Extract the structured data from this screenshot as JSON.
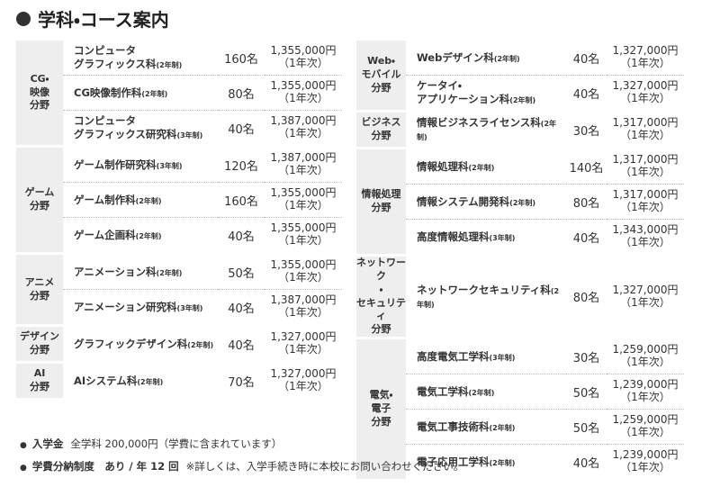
{
  "header": {
    "title": "学科・コース案内"
  },
  "left": {
    "groups": [
      {
        "field": "CG・\n映像\n分野",
        "courses": [
          {
            "name": "コンピュータ\nグラフィックス科",
            "term": "(2年制)",
            "capacity": "160名",
            "fee": "1,355,000円",
            "year": "（1年次）"
          },
          {
            "name": "CG映像制作科",
            "term": "(2年制)",
            "capacity": "80名",
            "fee": "1,355,000円",
            "year": "（1年次）"
          },
          {
            "name": "コンピュータ\nグラフィックス研究科",
            "term": "(3年制)",
            "capacity": "40名",
            "fee": "1,387,000円",
            "year": "（1年次）"
          }
        ]
      },
      {
        "field": "ゲーム\n分野",
        "courses": [
          {
            "name": "ゲーム制作研究科",
            "term": "(3年制)",
            "capacity": "120名",
            "fee": "1,387,000円",
            "year": "（1年次）"
          },
          {
            "name": "ゲーム制作科",
            "term": "(2年制)",
            "capacity": "160名",
            "fee": "1,355,000円",
            "year": "（1年次）"
          },
          {
            "name": "ゲーム企画科",
            "term": "(2年制)",
            "capacity": "40名",
            "fee": "1,355,000円",
            "year": "（1年次）"
          }
        ]
      },
      {
        "field": "アニメ\n分野",
        "courses": [
          {
            "name": "アニメーション科",
            "term": "(2年制)",
            "capacity": "50名",
            "fee": "1,355,000円",
            "year": "（1年次）"
          },
          {
            "name": "アニメーション研究科",
            "term": "(3年制)",
            "capacity": "40名",
            "fee": "1,387,000円",
            "year": "（1年次）"
          }
        ]
      },
      {
        "field": "デザイン\n分野",
        "courses": [
          {
            "name": "グラフィックデザイン科",
            "term": "(2年制)",
            "capacity": "40名",
            "fee": "1,327,000円",
            "year": "（1年次）"
          }
        ]
      },
      {
        "field": "AI\n分野",
        "courses": [
          {
            "name": "AIシステム科",
            "term": "(2年制)",
            "capacity": "70名",
            "fee": "1,327,000円",
            "year": "（1年次）"
          }
        ]
      }
    ]
  },
  "right": {
    "groups": [
      {
        "field": "Web・\nモバイル\n分野",
        "courses": [
          {
            "name": "Webデザイン科",
            "term": "(2年制)",
            "capacity": "40名",
            "fee": "1,327,000円",
            "year": "（1年次）"
          },
          {
            "name": "ケータイ・\nアプリケーション科",
            "term": "(2年制)",
            "capacity": "40名",
            "fee": "1,327,000円",
            "year": "（1年次）"
          }
        ]
      },
      {
        "field": "ビジネス\n分野",
        "courses": [
          {
            "name": "情報ビジネスライセンス科",
            "term": "(2年制)",
            "capacity": "30名",
            "fee": "1,317,000円",
            "year": "（1年次）"
          }
        ]
      },
      {
        "field": "情報処理\n分野",
        "courses": [
          {
            "name": "情報処理科",
            "term": "(2年制)",
            "capacity": "140名",
            "fee": "1,317,000円",
            "year": "（1年次）"
          },
          {
            "name": "情報システム開発科",
            "term": "(2年制)",
            "capacity": "80名",
            "fee": "1,317,000円",
            "year": "（1年次）"
          },
          {
            "name": "高度情報処理科",
            "term": "(3年制)",
            "capacity": "40名",
            "fee": "1,343,000円",
            "year": "（1年次）"
          }
        ]
      },
      {
        "field": "ネットワーク\n・\nセキュリティ\n分野",
        "courses": [
          {
            "name": "ネットワークセキュリティ科",
            "term": "(2年制)",
            "capacity": "80名",
            "fee": "1,327,000円",
            "year": "（1年次）"
          }
        ]
      },
      {
        "field": "電気・\n電子\n分野",
        "courses": [
          {
            "name": "高度電気工学科",
            "term": "(3年制)",
            "capacity": "30名",
            "fee": "1,259,000円",
            "year": "（1年次）"
          },
          {
            "name": "電気工学科",
            "term": "(2年制)",
            "capacity": "50名",
            "fee": "1,239,000円",
            "year": "（1年次）"
          },
          {
            "name": "電気工事技術科",
            "term": "(2年制)",
            "capacity": "50名",
            "fee": "1,259,000円",
            "year": "（1年次）"
          },
          {
            "name": "電子応用工学科",
            "term": "(2年制)",
            "capacity": "40名",
            "fee": "1,239,000円",
            "year": "（1年次）"
          }
        ]
      }
    ]
  },
  "notes": [
    {
      "label": "入学金",
      "text": "全学科 200,000円（学費に含まれています）"
    },
    {
      "label": "学費分納制度　あり / 年 12 回",
      "text": "※詳しくは、入学手続き時に本校にお問い合わせください。"
    }
  ]
}
